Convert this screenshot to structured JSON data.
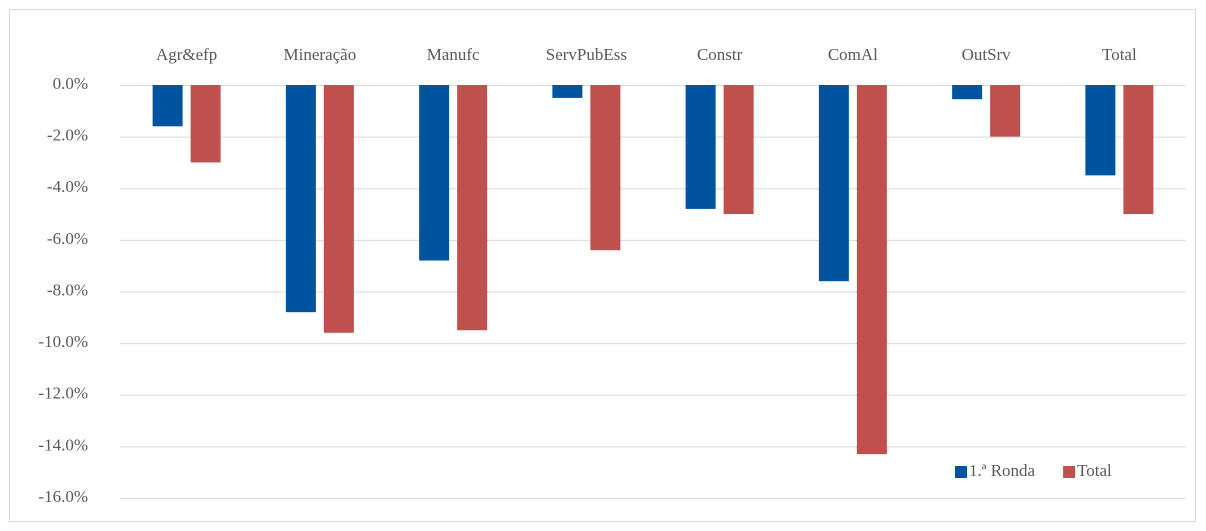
{
  "chart_data": {
    "type": "bar",
    "categories": [
      "Agr&efp",
      "Mineração",
      "Manufc",
      "ServPubEss",
      "Constr",
      "ComAl",
      "OutSrv",
      "Total"
    ],
    "series": [
      {
        "name": "1.ª Ronda",
        "color": "#00549f",
        "values": [
          -1.6,
          -8.8,
          -6.8,
          -0.5,
          -4.8,
          -7.6,
          -0.55,
          -3.5
        ]
      },
      {
        "name": "Total",
        "color": "#c0504d",
        "values": [
          -3.0,
          -9.6,
          -9.5,
          -6.4,
          -5.0,
          -14.3,
          -2.0,
          -5.0
        ]
      }
    ],
    "ylim": [
      -16,
      0
    ],
    "yticks": [
      {
        "value": 0,
        "label": "0.0%"
      },
      {
        "value": -2,
        "label": "-2.0%"
      },
      {
        "value": -4,
        "label": "-4.0%"
      },
      {
        "value": -6,
        "label": "-6.0%"
      },
      {
        "value": -8,
        "label": "-8.0%"
      },
      {
        "value": -10,
        "label": "-10.0%"
      },
      {
        "value": -12,
        "label": "-12.0%"
      },
      {
        "value": -14,
        "label": "-14.0%"
      },
      {
        "value": -16,
        "label": "-16.0%"
      }
    ],
    "grid": true,
    "legend": "bottom-right"
  }
}
